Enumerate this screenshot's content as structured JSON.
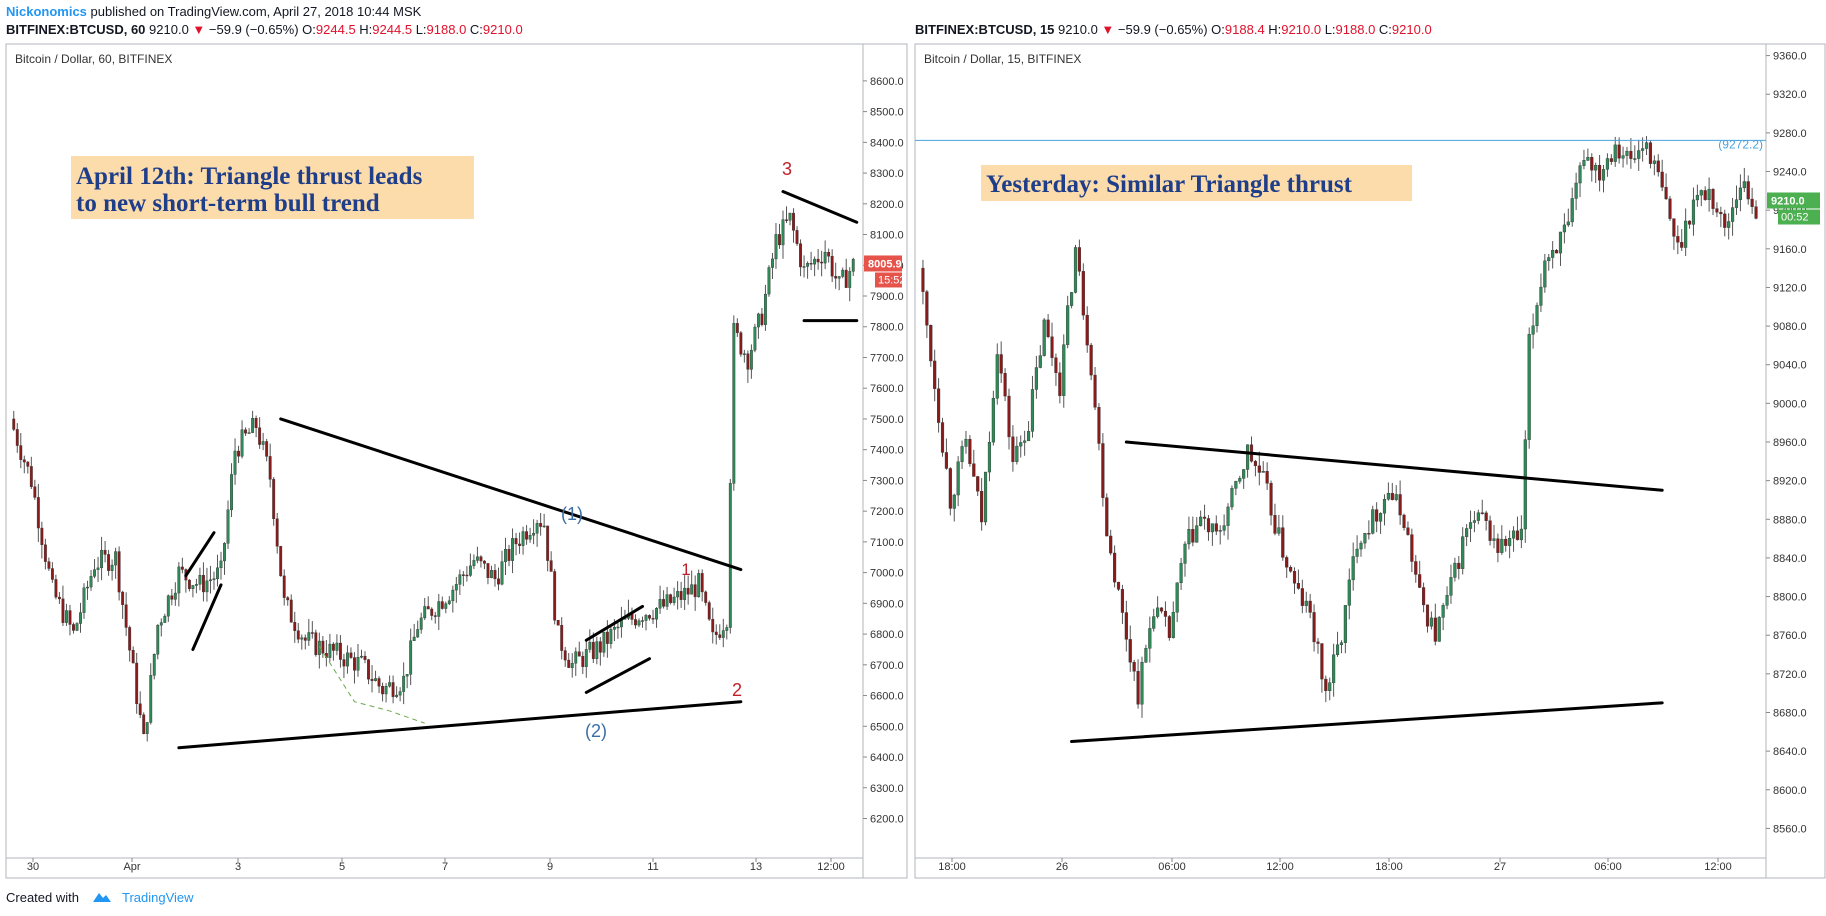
{
  "header": {
    "author": "Nickonomics",
    "published": "published on TradingView.com, April 27, 2018 10:44 MSK"
  },
  "footer": {
    "created_with": "Created with",
    "brand": "TradingView"
  },
  "colors": {
    "up": "#2e8b57",
    "down": "#8b1a1a",
    "annotation_red": "#c0202a",
    "wave_blue": "#3a6ea5",
    "label_bg": "#fddcab",
    "label_text": "#1f3e8a",
    "hline": "#4aa3df",
    "price_badge_red": "#e5534b",
    "price_badge_green": "#4caf50"
  },
  "chart_data": [
    {
      "type": "candlestick",
      "symbol": "BITFINEX:BTCUSD",
      "interval": "60",
      "ohlc_text": {
        "symbol": "BITFINEX:BTCUSD, 60",
        "last": "9210.0",
        "change": "−59.9 (−0.65%)",
        "o_label": "O:",
        "o": "9244.5",
        "h_label": "H:",
        "h": "9244.5",
        "l_label": "L:",
        "l": "9188.0",
        "c_label": "C:",
        "c": "9210.0"
      },
      "chart_title": "Bitcoin / Dollar, 60, BITFINEX",
      "ylim": [
        6130,
        8720
      ],
      "y_ticks": [
        "6200.0",
        "6300.0",
        "6400.0",
        "6500.0",
        "6600.0",
        "6700.0",
        "6800.0",
        "6900.0",
        "7000.0",
        "7100.0",
        "7200.0",
        "7300.0",
        "7400.0",
        "7500.0",
        "7600.0",
        "7700.0",
        "7800.0",
        "7900.0",
        "8000.0",
        "8100.0",
        "8200.0",
        "8300.0",
        "8400.0",
        "8500.0",
        "8600.0"
      ],
      "x_ticks": [
        "30",
        "Apr",
        "3",
        "5",
        "7",
        "9",
        "11",
        "13",
        "12:00"
      ],
      "last_price": "8005.9",
      "countdown": "15:52",
      "price_path": [
        [
          0,
          7500
        ],
        [
          6,
          7300
        ],
        [
          12,
          6940
        ],
        [
          18,
          6800
        ],
        [
          24,
          7030
        ],
        [
          30,
          7050
        ],
        [
          34,
          6750
        ],
        [
          38,
          6450
        ],
        [
          42,
          6830
        ],
        [
          48,
          7000
        ],
        [
          54,
          6960
        ],
        [
          60,
          7000
        ],
        [
          64,
          7400
        ],
        [
          70,
          7480
        ],
        [
          74,
          7310
        ],
        [
          78,
          6900
        ],
        [
          84,
          6780
        ],
        [
          92,
          6740
        ],
        [
          100,
          6700
        ],
        [
          106,
          6620
        ],
        [
          112,
          6650
        ],
        [
          116,
          6830
        ],
        [
          120,
          6880
        ],
        [
          126,
          6950
        ],
        [
          132,
          7040
        ],
        [
          138,
          6980
        ],
        [
          144,
          7100
        ],
        [
          150,
          7180
        ],
        [
          152,
          7160
        ],
        [
          156,
          6790
        ],
        [
          160,
          6700
        ],
        [
          168,
          6760
        ],
        [
          174,
          6830
        ],
        [
          180,
          6870
        ],
        [
          186,
          6890
        ],
        [
          192,
          6930
        ],
        [
          196,
          6960
        ],
        [
          200,
          6780
        ],
        [
          204,
          6860
        ],
        [
          206,
          7780
        ],
        [
          210,
          7700
        ],
        [
          214,
          7840
        ],
        [
          218,
          8080
        ],
        [
          222,
          8150
        ],
        [
          226,
          7980
        ],
        [
          232,
          8050
        ],
        [
          236,
          7930
        ],
        [
          240,
          8000
        ]
      ],
      "series_seed": 7,
      "annotations": {
        "label": [
          "April 12th: Triangle thrust leads",
          "to new short-term bull trend"
        ],
        "wave_1": "(1)",
        "wave_2": "(2)",
        "num_1": "1",
        "num_2": "2",
        "num_3": "3",
        "lines": [
          {
            "from": [
              77,
              7500
            ],
            "to": [
              208,
              7010
            ]
          },
          {
            "from": [
              48,
              6430
            ],
            "to": [
              208,
              6580
            ]
          },
          {
            "from": [
              50,
              6990
            ],
            "to": [
              58,
              7130
            ]
          },
          {
            "from": [
              52,
              6750
            ],
            "to": [
              60,
              6960
            ]
          },
          {
            "from": [
              164,
              6780
            ],
            "to": [
              180,
              6890
            ]
          },
          {
            "from": [
              164,
              6610
            ],
            "to": [
              182,
              6720
            ]
          },
          {
            "from": [
              220,
              8240
            ],
            "to": [
              241,
              8140
            ]
          },
          {
            "from": [
              226,
              7820
            ],
            "to": [
              241,
              7820
            ]
          }
        ],
        "dashed_curve": [
          [
            88,
            6760
          ],
          [
            98,
            6580
          ],
          [
            108,
            6550
          ],
          [
            118,
            6510
          ]
        ]
      }
    },
    {
      "type": "candlestick",
      "symbol": "BITFINEX:BTCUSD",
      "interval": "15",
      "ohlc_text": {
        "symbol": "BITFINEX:BTCUSD, 15",
        "last": "9210.0",
        "change": "−59.9 (−0.65%)",
        "o_label": "O:",
        "o": "9188.4",
        "h_label": "H:",
        "h": "9210.0",
        "l_label": "L:",
        "l": "9188.0",
        "c_label": "C:",
        "c": "9210.0"
      },
      "chart_title": "Bitcoin / Dollar, 15, BITFINEX",
      "ylim": [
        8548,
        9372
      ],
      "y_ticks": [
        "8560.0",
        "8600.0",
        "8640.0",
        "8680.0",
        "8720.0",
        "8760.0",
        "8800.0",
        "8840.0",
        "8880.0",
        "8920.0",
        "8960.0",
        "9000.0",
        "9040.0",
        "9080.0",
        "9120.0",
        "9160.0",
        "9200.0",
        "9240.0",
        "9280.0",
        "9320.0",
        "9360.0"
      ],
      "x_ticks": [
        "18:00",
        "26",
        "06:00",
        "12:00",
        "18:00",
        "27",
        "06:00",
        "12:00"
      ],
      "hline_value": 9272.2,
      "hline_label": "(9272.2)",
      "last_price": "9210.0",
      "countdown": "00:52",
      "price_path": [
        [
          0,
          9140
        ],
        [
          4,
          9020
        ],
        [
          8,
          8900
        ],
        [
          12,
          8960
        ],
        [
          16,
          8880
        ],
        [
          20,
          9060
        ],
        [
          24,
          8940
        ],
        [
          28,
          8980
        ],
        [
          32,
          9080
        ],
        [
          36,
          9020
        ],
        [
          40,
          9160
        ],
        [
          44,
          9040
        ],
        [
          48,
          8870
        ],
        [
          52,
          8780
        ],
        [
          56,
          8700
        ],
        [
          60,
          8790
        ],
        [
          64,
          8760
        ],
        [
          68,
          8850
        ],
        [
          72,
          8880
        ],
        [
          76,
          8860
        ],
        [
          80,
          8900
        ],
        [
          84,
          8950
        ],
        [
          88,
          8920
        ],
        [
          92,
          8860
        ],
        [
          96,
          8810
        ],
        [
          100,
          8780
        ],
        [
          104,
          8700
        ],
        [
          108,
          8760
        ],
        [
          112,
          8860
        ],
        [
          116,
          8880
        ],
        [
          120,
          8910
        ],
        [
          124,
          8880
        ],
        [
          128,
          8800
        ],
        [
          132,
          8760
        ],
        [
          136,
          8810
        ],
        [
          140,
          8870
        ],
        [
          144,
          8880
        ],
        [
          148,
          8850
        ],
        [
          152,
          8860
        ],
        [
          154,
          8860
        ],
        [
          156,
          9060
        ],
        [
          160,
          9150
        ],
        [
          166,
          9180
        ],
        [
          170,
          9260
        ],
        [
          174,
          9240
        ],
        [
          178,
          9270
        ],
        [
          182,
          9250
        ],
        [
          186,
          9270
        ],
        [
          190,
          9220
        ],
        [
          194,
          9160
        ],
        [
          198,
          9210
        ],
        [
          202,
          9220
        ],
        [
          206,
          9180
        ],
        [
          210,
          9230
        ],
        [
          214,
          9200
        ]
      ],
      "series_seed": 13,
      "annotations": {
        "label": [
          "Yesterday: Similar Triangle thrust"
        ],
        "lines": [
          {
            "from": [
              53,
              8960
            ],
            "to": [
              190,
              8910
            ]
          },
          {
            "from": [
              39,
              8650
            ],
            "to": [
              190,
              8690
            ]
          }
        ]
      }
    }
  ]
}
